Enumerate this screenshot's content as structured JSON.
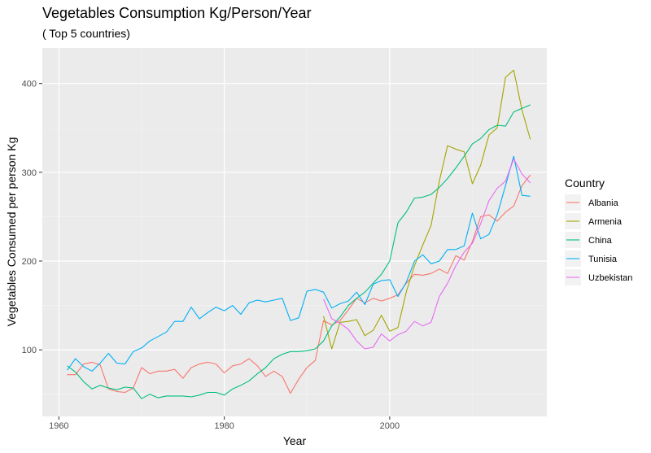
{
  "chart_data": {
    "type": "line",
    "title": "Vegetables Consumption Kg/Person/Year",
    "subtitle": "( Top 5 countries)",
    "xlabel": "Year",
    "ylabel": "Vegetables Consumed per person Kg",
    "xlim": [
      1958,
      2019
    ],
    "ylim": [
      25,
      440
    ],
    "xticks": [
      1960,
      1980,
      2000
    ],
    "yticks": [
      100,
      200,
      300,
      400
    ],
    "grid": true,
    "legend": {
      "title": "Country",
      "position": "right"
    },
    "x": [
      1961,
      1962,
      1963,
      1964,
      1965,
      1966,
      1967,
      1968,
      1969,
      1970,
      1971,
      1972,
      1973,
      1974,
      1975,
      1976,
      1977,
      1978,
      1979,
      1980,
      1981,
      1982,
      1983,
      1984,
      1985,
      1986,
      1987,
      1988,
      1989,
      1990,
      1991,
      1992,
      1993,
      1994,
      1995,
      1996,
      1997,
      1998,
      1999,
      2000,
      2001,
      2002,
      2003,
      2004,
      2005,
      2006,
      2007,
      2008,
      2009,
      2010,
      2011,
      2012,
      2013,
      2014,
      2015,
      2016,
      2017
    ],
    "series": [
      {
        "name": "Albania",
        "color": "#F8766D",
        "values": [
          72,
          72,
          84,
          86,
          83,
          56,
          53,
          52,
          57,
          80,
          73,
          76,
          76,
          78,
          68,
          80,
          84,
          86,
          84,
          74,
          82,
          84,
          90,
          82,
          70,
          76,
          70,
          51,
          67,
          80,
          88,
          133,
          128,
          133,
          145,
          158,
          153,
          158,
          155,
          158,
          162,
          175,
          185,
          184,
          186,
          191,
          186,
          206,
          201,
          222,
          250,
          252,
          245,
          255,
          262,
          285,
          297
        ]
      },
      {
        "name": "Armenia",
        "color": "#A3A500",
        "values": [
          null,
          null,
          null,
          null,
          null,
          null,
          null,
          null,
          null,
          null,
          null,
          null,
          null,
          null,
          null,
          null,
          null,
          null,
          null,
          null,
          null,
          null,
          null,
          null,
          null,
          null,
          null,
          null,
          null,
          null,
          null,
          138,
          101,
          131,
          132,
          134,
          116,
          122,
          139,
          121,
          125,
          165,
          195,
          218,
          240,
          290,
          330,
          326,
          323,
          287,
          308,
          342,
          350,
          407,
          415,
          370,
          337
        ]
      },
      {
        "name": "China",
        "color": "#00BF7D",
        "values": [
          82,
          75,
          64,
          56,
          60,
          57,
          55,
          58,
          57,
          45,
          50,
          46,
          48,
          48,
          48,
          47,
          49,
          52,
          52,
          49,
          56,
          60,
          65,
          73,
          80,
          90,
          95,
          98,
          98,
          99,
          101,
          110,
          127,
          137,
          150,
          158,
          165,
          175,
          185,
          200,
          243,
          255,
          271,
          272,
          275,
          283,
          293,
          305,
          318,
          332,
          338,
          348,
          353,
          352,
          368,
          372,
          376
        ]
      },
      {
        "name": "Tunisia",
        "color": "#00B0F6",
        "values": [
          77,
          90,
          81,
          76,
          85,
          96,
          85,
          84,
          98,
          102,
          110,
          115,
          120,
          132,
          132,
          148,
          135,
          142,
          148,
          144,
          150,
          140,
          153,
          156,
          154,
          156,
          158,
          133,
          136,
          166,
          168,
          165,
          147,
          152,
          155,
          165,
          151,
          174,
          178,
          179,
          160,
          176,
          200,
          207,
          197,
          200,
          213,
          213,
          217,
          254,
          225,
          230,
          252,
          285,
          318,
          274,
          273
        ]
      },
      {
        "name": "Uzbekistan",
        "color": "#E76BF3",
        "values": [
          null,
          null,
          null,
          null,
          null,
          null,
          null,
          null,
          null,
          null,
          null,
          null,
          null,
          null,
          null,
          null,
          null,
          null,
          null,
          null,
          null,
          null,
          null,
          null,
          null,
          null,
          null,
          null,
          null,
          null,
          null,
          157,
          135,
          130,
          123,
          110,
          101,
          103,
          118,
          110,
          117,
          121,
          132,
          127,
          131,
          160,
          175,
          195,
          210,
          220,
          242,
          268,
          282,
          290,
          315,
          298,
          288
        ]
      }
    ]
  }
}
